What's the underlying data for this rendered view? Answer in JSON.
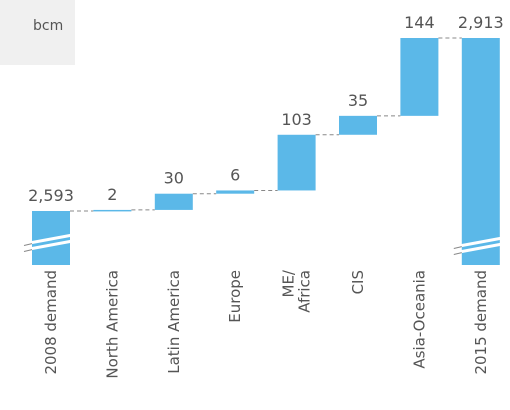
{
  "chart_data": {
    "type": "waterfall",
    "unit_label": "bcm",
    "categories": [
      "2008 demand",
      "North America",
      "Latin America",
      "Europe",
      "ME/\nAfrica",
      "CIS",
      "Asia-Oceania",
      "2015 demand"
    ],
    "values": [
      2593,
      2,
      30,
      6,
      103,
      35,
      144,
      2913
    ],
    "value_labels": [
      "2,593",
      "2",
      "30",
      "6",
      "103",
      "35",
      "144",
      "2,913"
    ],
    "measure": [
      "total",
      "relative",
      "relative",
      "relative",
      "relative",
      "relative",
      "relative",
      "total"
    ],
    "color": "#5bb8e8"
  }
}
